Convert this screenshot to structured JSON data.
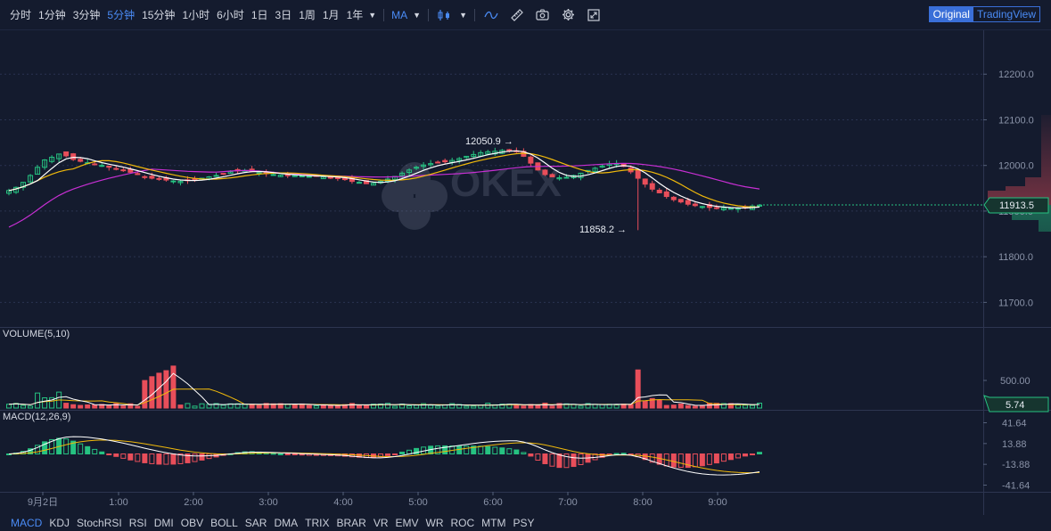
{
  "toolbar": {
    "timeframes": [
      "分时",
      "1分钟",
      "3分钟",
      "5分钟",
      "15分钟",
      "1小时",
      "6小时",
      "1日",
      "3日",
      "1周",
      "1月",
      "1年"
    ],
    "active_timeframe": "5分钟",
    "indicator_label": "MA",
    "view_original": "Original",
    "view_tradingview": "TradingView"
  },
  "main_pane": {
    "price_ticks": [
      "12200.0",
      "12100.0",
      "12000.0",
      "11900.0",
      "11800.0",
      "11700.0"
    ],
    "current_price": "11913.5",
    "high_annotation": "12050.9",
    "low_annotation": "11858.2",
    "watermark": "OKEX"
  },
  "volume_pane": {
    "title": "VOLUME(5,10)",
    "ticks": [
      "500.00"
    ],
    "current_value": "5.74"
  },
  "macd_pane": {
    "title": "MACD(12,26,9)",
    "ticks": [
      "41.64",
      "13.88",
      "-13.88",
      "-41.64"
    ]
  },
  "time_axis": [
    "9月2日",
    "1:00",
    "2:00",
    "3:00",
    "4:00",
    "5:00",
    "6:00",
    "7:00",
    "8:00",
    "9:00"
  ],
  "indicator_tabs": [
    "MACD",
    "KDJ",
    "StochRSI",
    "RSI",
    "DMI",
    "OBV",
    "BOLL",
    "SAR",
    "DMA",
    "TRIX",
    "BRAR",
    "VR",
    "EMV",
    "WR",
    "ROC",
    "MTM",
    "PSY"
  ],
  "colors": {
    "up": "#26c281",
    "down": "#e84e5a",
    "ma5": "#ffffff",
    "ma10": "#f0b90b",
    "ma30": "#c72fd3",
    "accent": "#4a8bf5"
  },
  "chart_data": {
    "type": "candlestick",
    "ylim": [
      11650,
      12300
    ],
    "close_series": [
      11945,
      11952,
      11963,
      11978,
      11996,
      12012,
      12018,
      12025,
      12021,
      12013,
      12009,
      12006,
      12003,
      12000,
      11996,
      11993,
      11989,
      11985,
      11980,
      11975,
      11972,
      11970,
      11968,
      11966,
      11965,
      11967,
      11969,
      11972,
      11975,
      11978,
      11982,
      11986,
      11988,
      11989,
      11987,
      11984,
      11982,
      11980,
      11979,
      11979,
      11978,
      11977,
      11976,
      11976,
      11975,
      11974,
      11972,
      11969,
      11965,
      11963,
      11960,
      11961,
      11965,
      11970,
      11976,
      11983,
      11990,
      11996,
      12001,
      12004,
      12006,
      12008,
      12011,
      12015,
      12020,
      12024,
      12028,
      12030,
      12031,
      12033,
      12034,
      12032,
      12020,
      12005,
      11990,
      11980,
      11975,
      11973,
      11974,
      11978,
      11983,
      11989,
      11994,
      11999,
      12003,
      12004,
      11998,
      11986,
      11972,
      11959,
      11948,
      11940,
      11932,
      11925,
      11920,
      11915,
      11912,
      11910,
      11908,
      11907,
      11907,
      11906,
      11906,
      11908,
      11911,
      11913
    ]
  }
}
